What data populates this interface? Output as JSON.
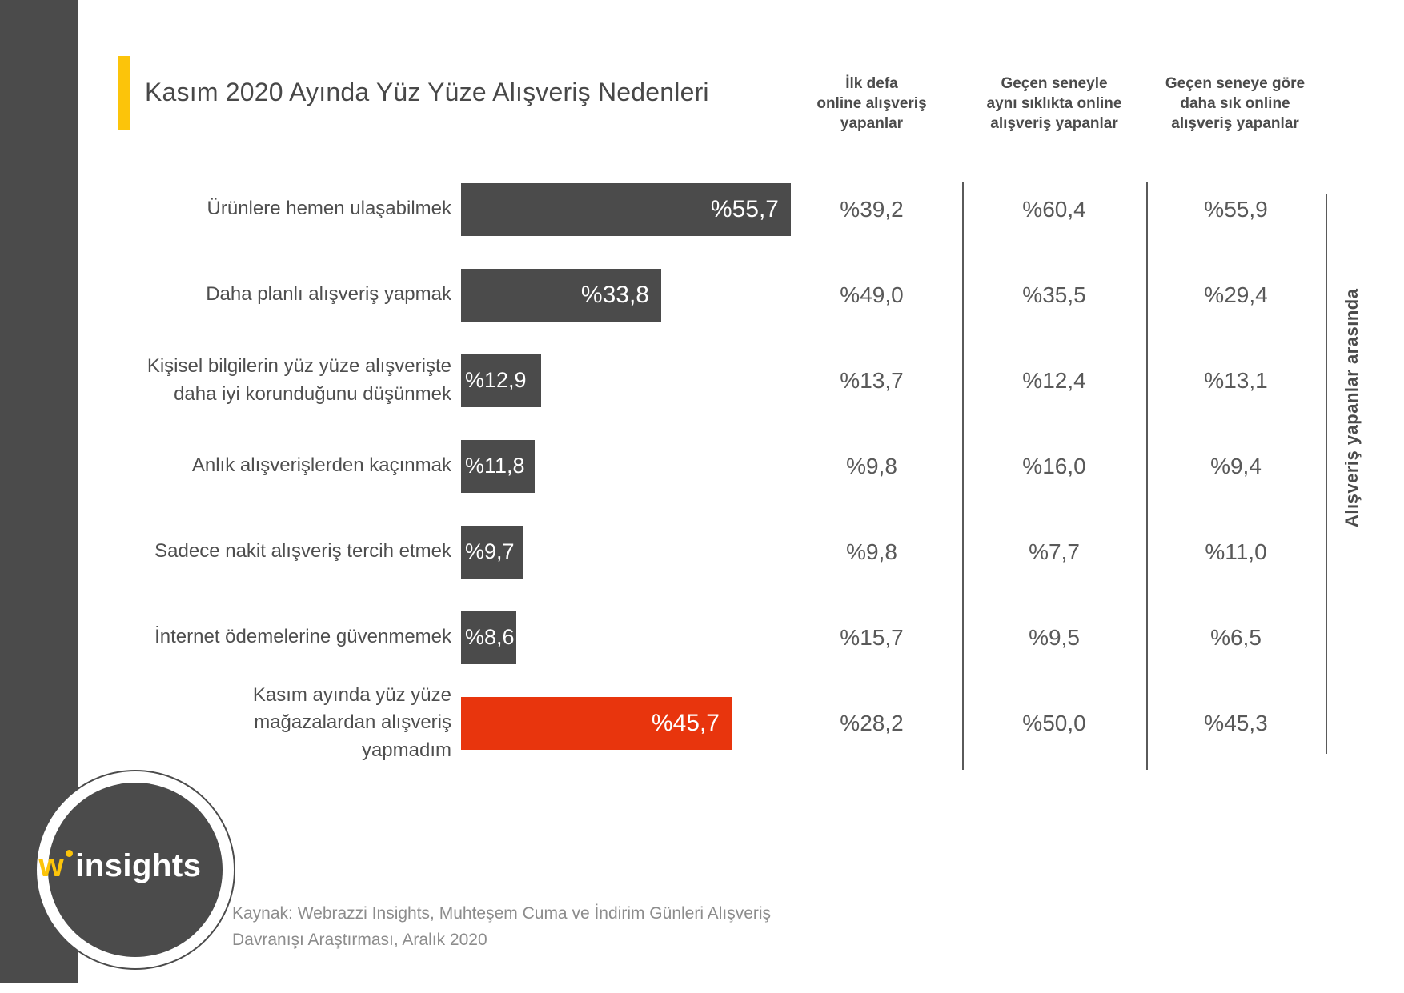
{
  "title": "Kasım 2020 Ayında Yüz Yüze Alışveriş Nedenleri",
  "columns": [
    {
      "label": "İlk defa online alışveriş yapanlar",
      "lines": [
        "İlk defa",
        "online alışveriş",
        "yapanlar"
      ]
    },
    {
      "label": "Geçen seneyle aynı sıklıkta online alışveriş yapanlar",
      "lines": [
        "Geçen seneyle",
        "aynı sıklıkta online",
        "alışveriş yapanlar"
      ]
    },
    {
      "label": "Geçen seneye göre daha sık online alışveriş yapanlar",
      "lines": [
        "Geçen seneye göre",
        "daha sık online",
        "alışveriş yapanlar"
      ]
    }
  ],
  "right_axis_label": "Alışveriş yapanlar arasında",
  "source": {
    "line1": "Kaynak: Webrazzi Insights, Muhteşem Cuma ve İndirim Günleri Alışveriş",
    "line2": "Davranışı Araştırması, Aralık 2020"
  },
  "logo": {
    "w": "w",
    "name": "insights"
  },
  "colors": {
    "dark": "#4b4b4b",
    "red": "#e8350d",
    "yellow": "#fcc40a"
  },
  "chart_data": {
    "type": "bar",
    "orientation": "horizontal",
    "title": "Kasım 2020 Ayında Yüz Yüze Alışveriş Nedenleri",
    "unit": "percent",
    "value_prefix": "%",
    "xlim": [
      0,
      55.7
    ],
    "grid": false,
    "categories": [
      "Ürünlere hemen ulaşabilmek",
      "Daha planlı alışveriş yapmak",
      "Kişisel bilgilerin yüz yüze alışverişte daha iyi korunduğunu düşünmek",
      "Anlık alışverişlerden kaçınmak",
      "Sadece nakit alışveriş tercih etmek",
      "İnternet ödemelerine güvenmemek",
      "Kasım ayında yüz yüze mağazalardan alışveriş yapmadım"
    ],
    "series": [
      {
        "name": "Alışveriş yapanlar arasında (bar)",
        "values": [
          55.7,
          33.8,
          12.9,
          11.8,
          9.7,
          8.6,
          45.7
        ]
      },
      {
        "name": "İlk defa online alışveriş yapanlar",
        "values": [
          39.2,
          49.0,
          13.7,
          9.8,
          9.8,
          15.7,
          28.2
        ]
      },
      {
        "name": "Geçen seneyle aynı sıklıkta online alışveriş yapanlar",
        "values": [
          60.4,
          35.5,
          12.4,
          16.0,
          7.7,
          9.5,
          50.0
        ]
      },
      {
        "name": "Geçen seneye göre daha sık online alışveriş yapanlar",
        "values": [
          55.9,
          29.4,
          13.1,
          9.4,
          11.0,
          6.5,
          45.3
        ]
      }
    ],
    "rows": [
      {
        "label_lines": [
          "Ürünlere hemen ulaşabilmek"
        ],
        "bar_value": 55.7,
        "bar_label": "%55,7",
        "bar_color": "dark",
        "values": [
          "%39,2",
          "%60,4",
          "%55,9"
        ]
      },
      {
        "label_lines": [
          "Daha planlı alışveriş yapmak"
        ],
        "bar_value": 33.8,
        "bar_label": "%33,8",
        "bar_color": "dark",
        "values": [
          "%49,0",
          "%35,5",
          "%29,4"
        ]
      },
      {
        "label_lines": [
          "Kişisel bilgilerin yüz yüze alışverişte",
          "daha iyi korunduğunu düşünmek"
        ],
        "bar_value": 12.9,
        "bar_label": "%12,9",
        "bar_color": "dark",
        "values": [
          "%13,7",
          "%12,4",
          "%13,1"
        ]
      },
      {
        "label_lines": [
          "Anlık alışverişlerden kaçınmak"
        ],
        "bar_value": 11.8,
        "bar_label": "%11,8",
        "bar_color": "dark",
        "values": [
          "%9,8",
          "%16,0",
          "%9,4"
        ]
      },
      {
        "label_lines": [
          "Sadece nakit alışveriş tercih etmek"
        ],
        "bar_value": 9.7,
        "bar_label": "%9,7",
        "bar_color": "dark",
        "values": [
          "%9,8",
          "%7,7",
          "%11,0"
        ]
      },
      {
        "label_lines": [
          "İnternet ödemelerine güvenmemek"
        ],
        "bar_value": 8.6,
        "bar_label": "%8,6",
        "bar_color": "dark",
        "values": [
          "%15,7",
          "%9,5",
          "%6,5"
        ]
      },
      {
        "label_lines": [
          "Kasım ayında yüz yüze",
          "mağazalardan alışveriş",
          "yapmadım"
        ],
        "bar_value": 45.7,
        "bar_label": "%45,7",
        "bar_color": "red",
        "values": [
          "%28,2",
          "%50,0",
          "%45,3"
        ]
      }
    ]
  }
}
